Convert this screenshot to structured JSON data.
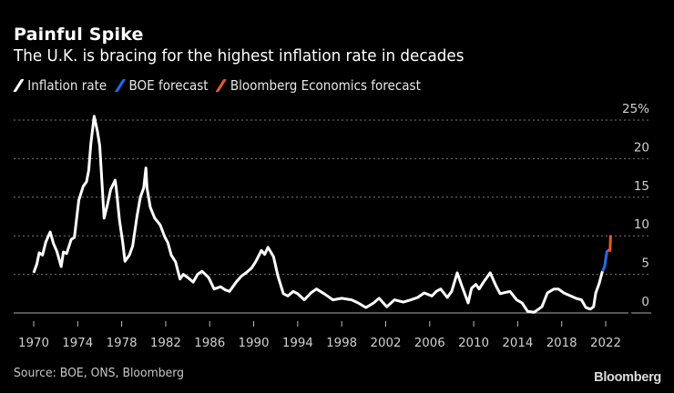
{
  "header": {
    "title": "Painful Spike",
    "subtitle": "The U.K. is bracing for the highest inflation rate in decades"
  },
  "legend": [
    {
      "label": "Inflation rate",
      "color": "#ffffff"
    },
    {
      "label": "BOE forecast",
      "color": "#1f6ee8"
    },
    {
      "label": "Bloomberg Economics forecast",
      "color": "#e8582a"
    }
  ],
  "footer": {
    "source": "Source: BOE, ONS, Bloomberg",
    "logo": "Bloomberg"
  },
  "chart_data": {
    "type": "line",
    "title": "Painful Spike",
    "subtitle": "The U.K. is bracing for the highest inflation rate in decades",
    "xlabel": "",
    "ylabel": "",
    "xlim": [
      1969.9,
      2025.4
    ],
    "ylim": [
      0,
      25
    ],
    "x_ticks": [
      1970,
      1974,
      1978,
      1982,
      1986,
      1990,
      1994,
      1998,
      2002,
      2006,
      2010,
      2014,
      2018,
      2022
    ],
    "x_tick_labels": [
      "1970",
      "1974",
      "1978",
      "1982",
      "1986",
      "1990",
      "1994",
      "1998",
      "2002",
      "2006",
      "2010",
      "2014",
      "2018",
      "2022"
    ],
    "y_ticks": [
      0,
      5,
      10,
      15,
      20,
      25
    ],
    "y_tick_labels": [
      "0",
      "5",
      "10",
      "15",
      "20",
      "25%"
    ],
    "y_axis_position": "right",
    "grid": "horizontal dotted",
    "legend_position": "top-left",
    "series": [
      {
        "name": "Inflation rate",
        "color": "#ffffff",
        "points": [
          [
            1970.0,
            5.2
          ],
          [
            1970.3,
            6.4
          ],
          [
            1970.5,
            7.8
          ],
          [
            1970.8,
            7.5
          ],
          [
            1971.1,
            9.2
          ],
          [
            1971.5,
            10.5
          ],
          [
            1971.8,
            9.0
          ],
          [
            1972.1,
            8.0
          ],
          [
            1972.5,
            6.0
          ],
          [
            1972.7,
            7.9
          ],
          [
            1973.0,
            7.7
          ],
          [
            1973.4,
            9.5
          ],
          [
            1973.7,
            9.8
          ],
          [
            1974.1,
            14.6
          ],
          [
            1974.5,
            16.4
          ],
          [
            1974.8,
            17.0
          ],
          [
            1975.0,
            18.5
          ],
          [
            1975.2,
            22.0
          ],
          [
            1975.5,
            25.5
          ],
          [
            1975.8,
            23.5
          ],
          [
            1976.0,
            21.7
          ],
          [
            1976.2,
            17.0
          ],
          [
            1976.4,
            12.3
          ],
          [
            1976.7,
            14.0
          ],
          [
            1977.0,
            16.0
          ],
          [
            1977.4,
            17.2
          ],
          [
            1977.5,
            16.2
          ],
          [
            1977.8,
            12.0
          ],
          [
            1978.1,
            9.1
          ],
          [
            1978.3,
            6.7
          ],
          [
            1978.7,
            7.5
          ],
          [
            1979.0,
            8.7
          ],
          [
            1979.4,
            12.6
          ],
          [
            1979.7,
            15.0
          ],
          [
            1980.0,
            16.2
          ],
          [
            1980.2,
            18.8
          ],
          [
            1980.3,
            16.2
          ],
          [
            1980.6,
            13.7
          ],
          [
            1981.0,
            12.3
          ],
          [
            1981.5,
            11.4
          ],
          [
            1981.9,
            9.9
          ],
          [
            1982.2,
            9.1
          ],
          [
            1982.5,
            7.5
          ],
          [
            1982.9,
            6.6
          ],
          [
            1983.3,
            4.4
          ],
          [
            1983.6,
            5.0
          ],
          [
            1984.0,
            4.6
          ],
          [
            1984.5,
            4.0
          ],
          [
            1984.9,
            5.0
          ],
          [
            1985.3,
            5.4
          ],
          [
            1985.9,
            4.6
          ],
          [
            1986.4,
            3.1
          ],
          [
            1987.0,
            3.4
          ],
          [
            1987.4,
            3.0
          ],
          [
            1987.8,
            2.8
          ],
          [
            1988.4,
            4.0
          ],
          [
            1988.9,
            4.8
          ],
          [
            1989.3,
            5.2
          ],
          [
            1989.8,
            5.8
          ],
          [
            1990.2,
            6.7
          ],
          [
            1990.7,
            8.1
          ],
          [
            1991.0,
            7.6
          ],
          [
            1991.3,
            8.5
          ],
          [
            1991.8,
            7.3
          ],
          [
            1992.2,
            4.8
          ],
          [
            1992.7,
            2.5
          ],
          [
            1993.1,
            2.2
          ],
          [
            1993.6,
            2.8
          ],
          [
            1994.0,
            2.5
          ],
          [
            1994.6,
            1.7
          ],
          [
            1995.2,
            2.6
          ],
          [
            1995.7,
            3.1
          ],
          [
            1996.4,
            2.5
          ],
          [
            1996.8,
            2.1
          ],
          [
            1997.2,
            1.7
          ],
          [
            1998.0,
            1.9
          ],
          [
            1998.9,
            1.7
          ],
          [
            1999.5,
            1.3
          ],
          [
            2000.2,
            0.7
          ],
          [
            2000.9,
            1.3
          ],
          [
            2001.4,
            1.9
          ],
          [
            2002.1,
            0.8
          ],
          [
            2002.8,
            1.7
          ],
          [
            2003.6,
            1.4
          ],
          [
            2004.3,
            1.7
          ],
          [
            2004.9,
            2.0
          ],
          [
            2005.5,
            2.6
          ],
          [
            2006.2,
            2.2
          ],
          [
            2006.6,
            2.8
          ],
          [
            2007.0,
            3.1
          ],
          [
            2007.6,
            2.0
          ],
          [
            2008.0,
            2.8
          ],
          [
            2008.5,
            5.2
          ],
          [
            2008.9,
            3.6
          ],
          [
            2009.5,
            1.3
          ],
          [
            2009.8,
            3.2
          ],
          [
            2010.2,
            3.7
          ],
          [
            2010.5,
            3.1
          ],
          [
            2010.9,
            4.0
          ],
          [
            2011.5,
            5.2
          ],
          [
            2012.0,
            3.6
          ],
          [
            2012.4,
            2.5
          ],
          [
            2013.3,
            2.8
          ],
          [
            2013.9,
            1.7
          ],
          [
            2014.4,
            1.3
          ],
          [
            2014.9,
            0.2
          ],
          [
            2015.5,
            0.1
          ],
          [
            2016.2,
            0.8
          ],
          [
            2016.7,
            2.6
          ],
          [
            2017.3,
            3.1
          ],
          [
            2017.7,
            3.1
          ],
          [
            2018.2,
            2.6
          ],
          [
            2018.8,
            2.2
          ],
          [
            2019.3,
            1.9
          ],
          [
            2019.8,
            1.7
          ],
          [
            2020.2,
            0.7
          ],
          [
            2020.6,
            0.5
          ],
          [
            2020.9,
            0.8
          ],
          [
            2021.1,
            2.6
          ],
          [
            2021.4,
            3.8
          ],
          [
            2021.7,
            5.4
          ]
        ]
      },
      {
        "name": "BOE forecast",
        "color": "#1f6ee8",
        "points": [
          [
            2021.7,
            5.4
          ],
          [
            2021.9,
            6.0
          ],
          [
            2022.1,
            7.9
          ],
          [
            2022.15,
            8.1
          ]
        ]
      },
      {
        "name": "Bloomberg Economics forecast",
        "color": "#e8582a",
        "points": [
          [
            2022.15,
            8.1
          ],
          [
            2022.4,
            8.1
          ],
          [
            2022.45,
            10.1
          ]
        ]
      }
    ]
  }
}
